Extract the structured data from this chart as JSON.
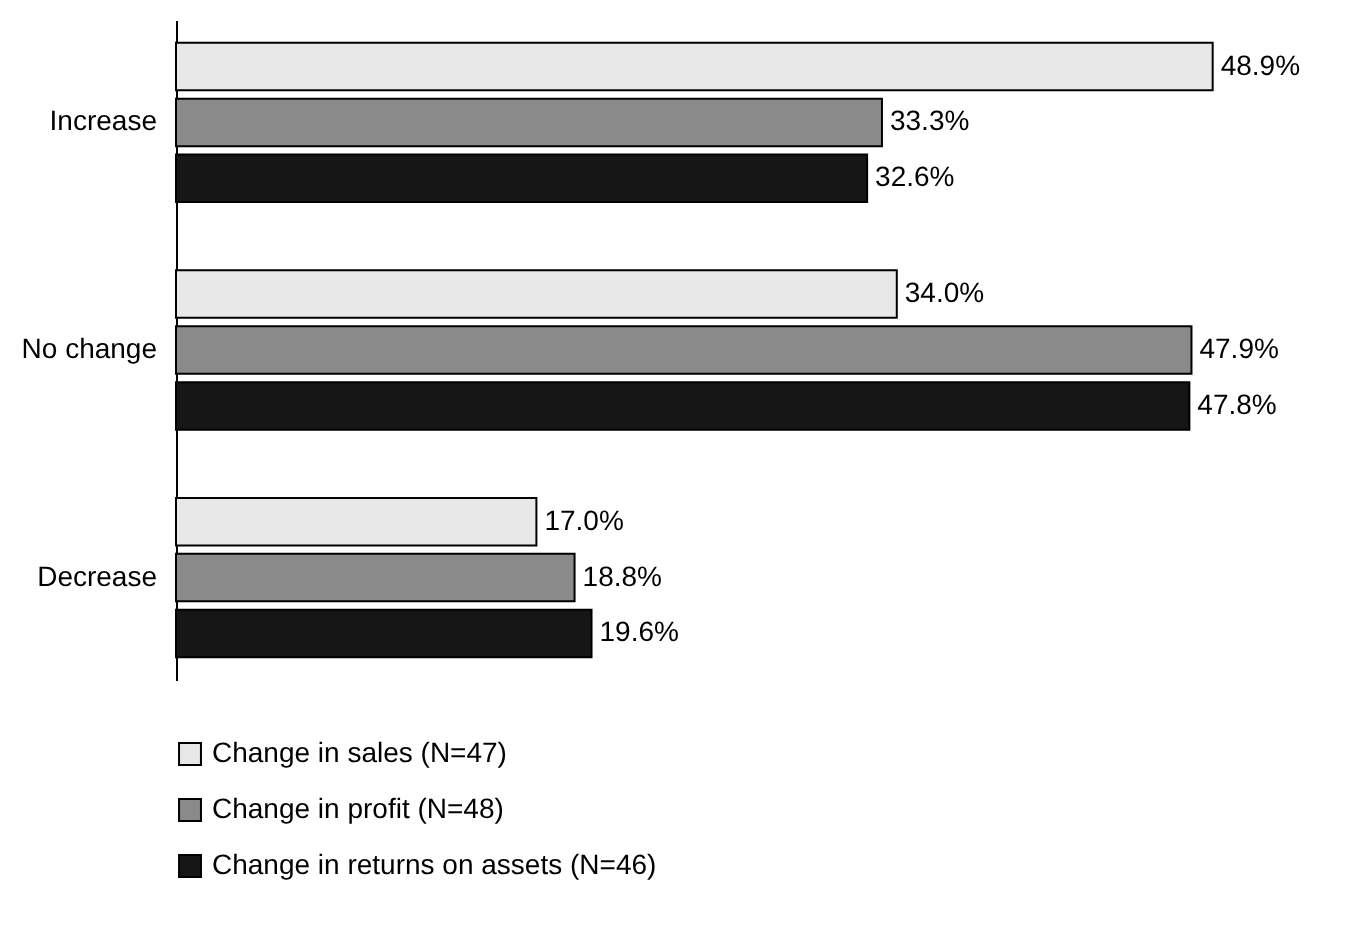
{
  "chart_data": {
    "type": "bar",
    "orientation": "horizontal",
    "categories": [
      "Increase",
      "No change",
      "Decrease"
    ],
    "series": [
      {
        "name": "Change in sales (N=47)",
        "color": "#e8e8e8",
        "values": [
          48.9,
          34.0,
          17.0
        ],
        "value_labels": [
          "48.9%",
          "34.0%",
          "17.0%"
        ]
      },
      {
        "name": "Change in profit (N=48)",
        "color": "#8a8a8a",
        "values": [
          33.3,
          47.9,
          18.8
        ],
        "value_labels": [
          "33.3%",
          "47.9%",
          "18.8%"
        ]
      },
      {
        "name": "Change in returns on assets (N=46)",
        "color": "#161616",
        "values": [
          32.6,
          47.8,
          19.6
        ],
        "value_labels": [
          "32.6%",
          "47.8%",
          "19.6%"
        ]
      }
    ],
    "legend": "bottom"
  }
}
